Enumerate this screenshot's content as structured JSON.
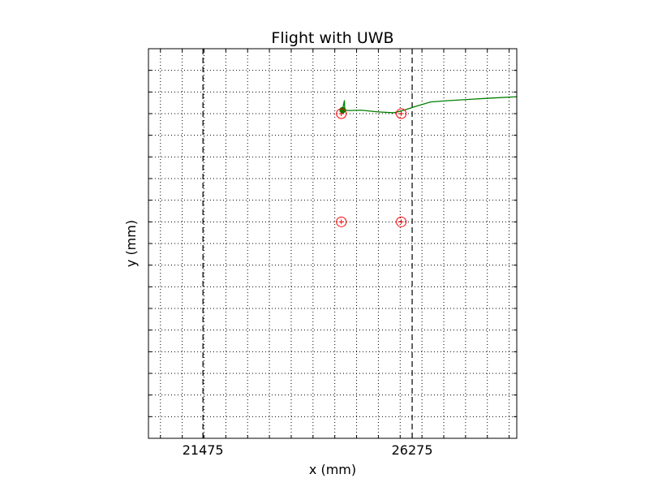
{
  "chart_data": {
    "type": "line",
    "title": "Flight with UWB",
    "xlabel": "x (mm)",
    "ylabel": "y (mm)",
    "xlim": [
      20225,
      28675
    ],
    "ylim": [
      0,
      9000
    ],
    "grid": true,
    "grid_style": "dotted",
    "x_grid_step": 500,
    "y_grid_step": 500,
    "x_tick_labels": [
      {
        "value": 21475,
        "label": "21475"
      },
      {
        "value": 26275,
        "label": "26275"
      }
    ],
    "boundary_lines": [
      21475,
      26275
    ],
    "anchors": [
      {
        "x": 24650,
        "y": 7500
      },
      {
        "x": 26025,
        "y": 7500
      },
      {
        "x": 24650,
        "y": 5000
      },
      {
        "x": 26025,
        "y": 5000
      }
    ],
    "trajectory": {
      "color": "#007f00",
      "x": [
        24650,
        24680,
        24700,
        24720,
        24730,
        24800,
        25100,
        25500,
        25850,
        26025,
        26300,
        26700,
        27100,
        27600,
        28100,
        28675
      ],
      "y": [
        7550,
        7620,
        7700,
        7800,
        7590,
        7570,
        7580,
        7540,
        7520,
        7560,
        7650,
        7770,
        7800,
        7830,
        7860,
        7890
      ]
    },
    "start_marker": {
      "x": 24680,
      "y": 7580
    }
  },
  "colors": {
    "trajectory": "#007f00",
    "anchors": "#ff0000",
    "boundary": "#000000",
    "grid": "#000000"
  }
}
